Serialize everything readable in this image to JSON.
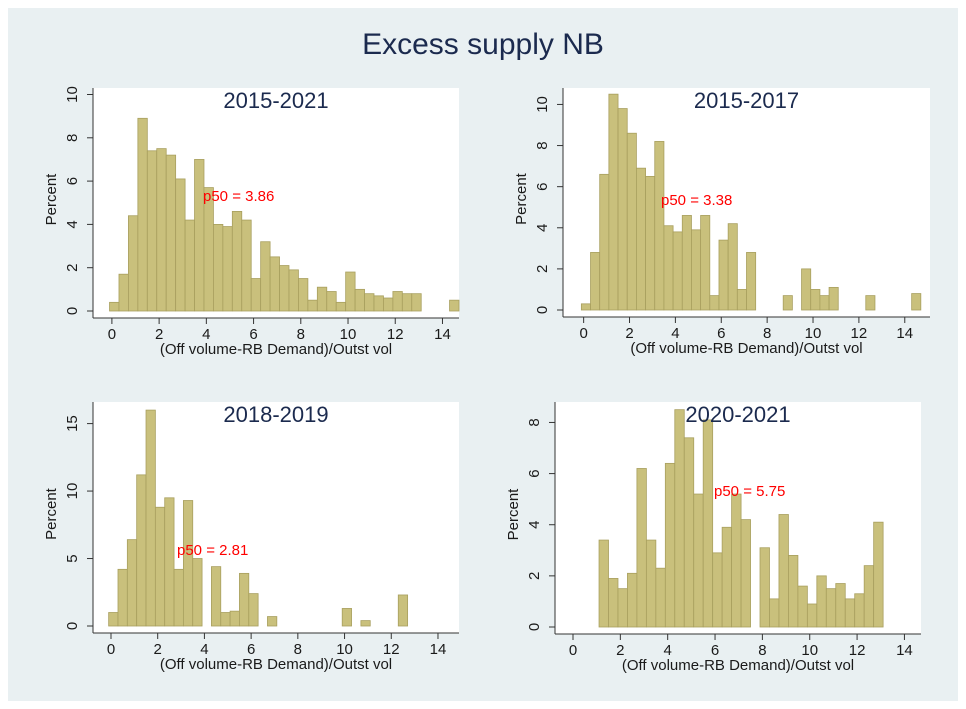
{
  "title": "Excess supply NB",
  "chart_data": [
    {
      "type": "histogram",
      "title": "2015-2021",
      "xlabel": "(Off volume-RB Demand)/Outst vol",
      "ylabel": "Percent",
      "annotation": "p50 = 3.86",
      "color": "#c9c07c",
      "bins": [
        -0.1,
        0.3,
        0.7,
        1.1,
        1.5,
        1.9,
        2.3,
        2.7,
        3.1,
        3.5,
        3.9,
        4.3,
        4.7,
        5.1,
        5.5,
        5.9,
        6.3,
        6.7,
        7.1,
        7.5,
        7.9,
        8.3,
        8.7,
        9.1,
        9.5,
        9.9,
        10.3,
        10.7,
        11.1,
        11.5,
        11.9,
        12.3,
        12.7,
        13.1,
        13.5,
        13.9,
        14.3,
        14.7
      ],
      "values": [
        0.4,
        1.7,
        4.4,
        8.9,
        7.4,
        7.5,
        7.2,
        6.1,
        4.2,
        7.0,
        5.7,
        4.0,
        3.9,
        4.6,
        4.2,
        1.5,
        3.2,
        2.5,
        2.1,
        1.9,
        1.5,
        0.5,
        1.1,
        0.9,
        0.4,
        1.8,
        1.0,
        0.8,
        0.7,
        0.6,
        0.9,
        0.8,
        0.8,
        0,
        0,
        0,
        0.5
      ],
      "xlim": [
        -0.8,
        14.7
      ],
      "ylim": [
        0,
        10.3
      ],
      "xticks": [
        0,
        2,
        4,
        6,
        8,
        10,
        12,
        14
      ],
      "yticks": [
        0,
        2,
        4,
        6,
        8,
        10
      ]
    },
    {
      "type": "histogram",
      "title": "2015-2017",
      "xlabel": "(Off volume-RB Demand)/Outst vol",
      "ylabel": "Percent",
      "annotation": "p50 = 3.38",
      "color": "#c9c07c",
      "bins": [
        -0.1,
        0.3,
        0.7,
        1.1,
        1.5,
        1.9,
        2.3,
        2.7,
        3.1,
        3.5,
        3.9,
        4.3,
        4.7,
        5.1,
        5.5,
        5.9,
        6.3,
        6.7,
        7.1,
        7.5,
        7.9,
        8.3,
        8.7,
        9.1,
        9.5,
        9.9,
        10.3,
        10.7,
        11.1,
        11.5,
        11.9,
        12.3,
        12.7,
        13.1,
        13.5,
        13.9,
        14.3,
        14.7
      ],
      "values": [
        0.3,
        2.8,
        6.6,
        10.5,
        9.8,
        8.6,
        6.9,
        6.5,
        8.2,
        4.1,
        3.8,
        4.6,
        3.9,
        4.6,
        0.7,
        3.4,
        4.2,
        1.0,
        2.8,
        0,
        0,
        0,
        0.7,
        0,
        2.0,
        1.0,
        0.7,
        1.1,
        0,
        0,
        0,
        0.7,
        0,
        0,
        0,
        0,
        0.8
      ],
      "xlim": [
        -0.9,
        15.1
      ],
      "ylim": [
        0,
        10.8
      ],
      "xticks": [
        0,
        2,
        4,
        6,
        8,
        10,
        12,
        14
      ],
      "yticks": [
        0,
        2,
        4,
        6,
        8,
        10
      ]
    },
    {
      "type": "histogram",
      "title": "2018-2019",
      "xlabel": "(Off volume-RB Demand)/Outst vol",
      "ylabel": "Percent",
      "annotation": "p50 = 2.81",
      "color": "#c9c07c",
      "bins": [
        -0.1,
        0.3,
        0.7,
        1.1,
        1.5,
        1.9,
        2.3,
        2.7,
        3.1,
        3.5,
        3.9,
        4.3,
        4.7,
        5.1,
        5.5,
        5.9,
        6.3,
        6.7,
        7.1,
        7.5,
        7.9,
        8.3,
        8.7,
        9.1,
        9.5,
        9.9,
        10.3,
        10.7,
        11.1,
        11.5,
        11.9,
        12.3,
        12.7,
        13.1,
        13.5,
        13.9,
        14.3,
        14.7
      ],
      "values": [
        1.0,
        4.2,
        6.4,
        11.2,
        16.0,
        8.8,
        9.5,
        4.2,
        9.3,
        5.0,
        0,
        4.4,
        1.0,
        1.1,
        3.9,
        2.4,
        0,
        0.7,
        0,
        0,
        0,
        0,
        0,
        0,
        0,
        1.3,
        0,
        0.4,
        0,
        0,
        0,
        2.3,
        0,
        0,
        0,
        0,
        0
      ],
      "xlim": [
        -0.77,
        14.9
      ],
      "ylim": [
        0,
        16.6
      ],
      "xticks": [
        0,
        2,
        4,
        6,
        8,
        10,
        12,
        14
      ],
      "yticks": [
        0,
        5,
        10,
        15
      ]
    },
    {
      "type": "histogram",
      "title": "2020-2021",
      "xlabel": "(Off volume-RB Demand)/Outst vol",
      "ylabel": "Percent",
      "annotation": "p50 = 5.75",
      "color": "#c9c07c",
      "bins": [
        -0.1,
        0.3,
        0.7,
        1.1,
        1.5,
        1.9,
        2.3,
        2.7,
        3.1,
        3.5,
        3.9,
        4.3,
        4.7,
        5.1,
        5.5,
        5.9,
        6.3,
        6.7,
        7.1,
        7.5,
        7.9,
        8.3,
        8.7,
        9.1,
        9.5,
        9.9,
        10.3,
        10.7,
        11.1,
        11.5,
        11.9,
        12.3,
        12.7,
        13.1,
        13.5,
        13.9,
        14.3,
        14.7
      ],
      "values": [
        0,
        0,
        0,
        3.4,
        1.9,
        1.5,
        2.1,
        6.2,
        3.4,
        2.3,
        6.4,
        8.5,
        7.4,
        5.2,
        8.1,
        2.9,
        3.9,
        5.2,
        4.2,
        0,
        3.1,
        1.1,
        4.4,
        2.8,
        1.6,
        0.9,
        2.0,
        1.5,
        1.7,
        1.1,
        1.3,
        2.4,
        4.1,
        0,
        0,
        0,
        0
      ],
      "xlim": [
        -0.76,
        14.7
      ],
      "ylim": [
        0,
        8.8
      ],
      "xticks": [
        0,
        2,
        4,
        6,
        8,
        10,
        12,
        14
      ],
      "yticks": [
        0,
        2,
        4,
        6,
        8
      ]
    }
  ]
}
